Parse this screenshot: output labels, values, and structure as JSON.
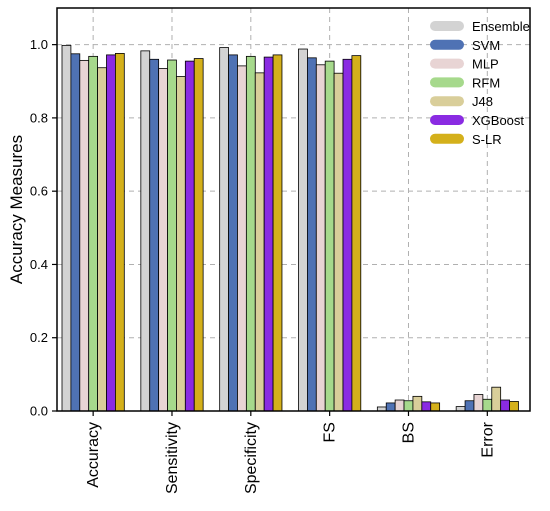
{
  "chart_data": {
    "type": "bar",
    "title": "",
    "xlabel": "",
    "ylabel": "Accuracy Measures",
    "ylim": [
      0,
      1.1
    ],
    "yticks": [
      "0.0",
      "0.2",
      "0.4",
      "0.6",
      "0.8",
      "1.0"
    ],
    "grid": true,
    "legend_position": "top-right",
    "categories": [
      "Accuracy",
      "Sensitivity",
      "Specificity",
      "FS",
      "BS",
      "Error"
    ],
    "series": [
      {
        "name": "Ensemble",
        "color": "#d3d3d3",
        "values": [
          0.998,
          0.983,
          0.992,
          0.988,
          0.011,
          0.012
        ]
      },
      {
        "name": "SVM",
        "color": "#4f72b4",
        "values": [
          0.975,
          0.96,
          0.972,
          0.964,
          0.022,
          0.028
        ]
      },
      {
        "name": "MLP",
        "color": "#e8d4d4",
        "values": [
          0.957,
          0.935,
          0.942,
          0.945,
          0.03,
          0.045
        ]
      },
      {
        "name": "RFM",
        "color": "#a6d98c",
        "values": [
          0.968,
          0.958,
          0.968,
          0.955,
          0.028,
          0.032
        ]
      },
      {
        "name": "J48",
        "color": "#d9ce9a",
        "values": [
          0.937,
          0.913,
          0.923,
          0.922,
          0.04,
          0.065
        ]
      },
      {
        "name": "XGBoost",
        "color": "#8a2be2",
        "values": [
          0.972,
          0.955,
          0.966,
          0.96,
          0.025,
          0.03
        ]
      },
      {
        "name": "S-LR",
        "color": "#d4b01b",
        "values": [
          0.976,
          0.962,
          0.972,
          0.97,
          0.022,
          0.026
        ]
      }
    ]
  }
}
